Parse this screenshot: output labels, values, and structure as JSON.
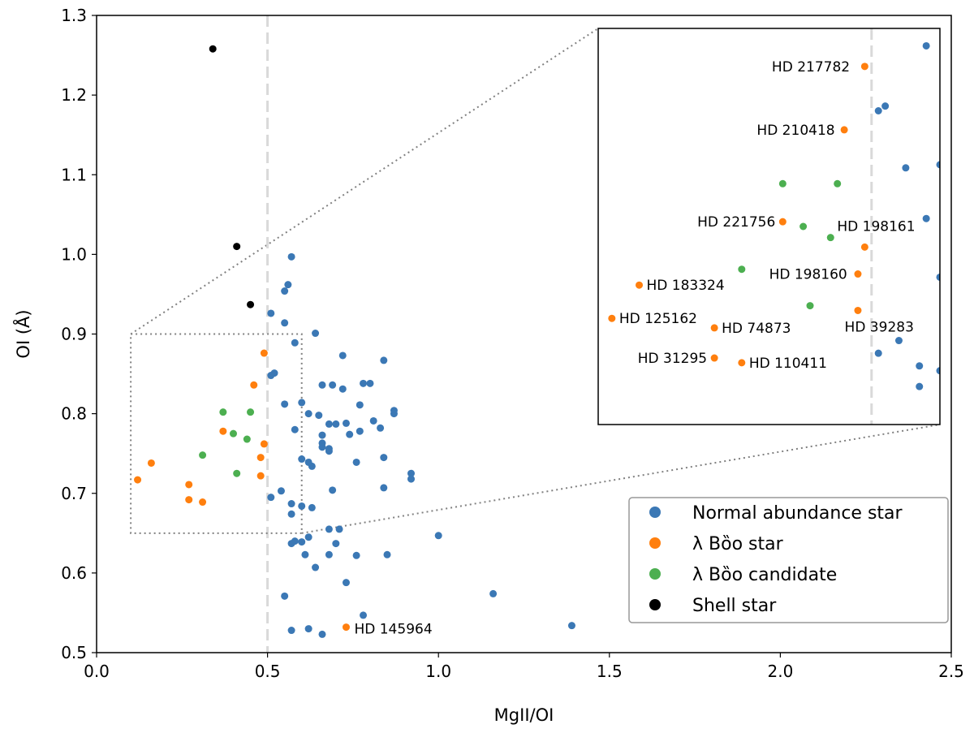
{
  "chart_data": {
    "type": "scatter",
    "title": "",
    "xlabel": "MgII/OI",
    "ylabel": "OI (Å)",
    "xlim": [
      0.0,
      2.5
    ],
    "ylim": [
      0.5,
      1.3
    ],
    "x_ticks": [
      "0.0",
      "0.5",
      "1.0",
      "1.5",
      "2.0",
      "2.5"
    ],
    "y_ticks": [
      "0.5",
      "0.6",
      "0.7",
      "0.8",
      "0.9",
      "1.0",
      "1.1",
      "1.2",
      "1.3"
    ],
    "vline_x": 0.5,
    "zoom_region": {
      "xlim": [
        0.1,
        0.6
      ],
      "ylim": [
        0.65,
        0.9
      ]
    },
    "colors": {
      "normal": "#3b78b5",
      "lamboo": "#ff7f0e",
      "candidate": "#4caf50",
      "shell": "#000000",
      "vline": "#d9d9d9",
      "dotted": "#808080"
    },
    "legend": {
      "placement": "bottom-right",
      "entries": [
        {
          "key": "normal",
          "label": "Normal abundance star"
        },
        {
          "key": "lamboo",
          "label": "λ Bȍo star"
        },
        {
          "key": "candidate",
          "label": "λ Bȍo candidate"
        },
        {
          "key": "shell",
          "label": "Shell star"
        }
      ]
    },
    "series": [
      {
        "key": "normal",
        "name": "Normal abundance star",
        "points": [
          [
            0.57,
            0.997
          ],
          [
            0.56,
            0.962
          ],
          [
            0.55,
            0.954
          ],
          [
            0.51,
            0.926
          ],
          [
            0.55,
            0.914
          ],
          [
            0.64,
            0.901
          ],
          [
            0.58,
            0.889
          ],
          [
            0.72,
            0.873
          ],
          [
            0.84,
            0.867
          ],
          [
            0.52,
            0.851
          ],
          [
            0.51,
            0.848
          ],
          [
            0.66,
            0.836
          ],
          [
            0.69,
            0.836
          ],
          [
            0.78,
            0.838
          ],
          [
            0.8,
            0.838
          ],
          [
            0.72,
            0.831
          ],
          [
            0.55,
            0.812
          ],
          [
            0.6,
            0.814
          ],
          [
            0.77,
            0.811
          ],
          [
            0.87,
            0.804
          ],
          [
            0.87,
            0.8
          ],
          [
            0.62,
            0.8
          ],
          [
            0.65,
            0.798
          ],
          [
            0.81,
            0.791
          ],
          [
            0.68,
            0.787
          ],
          [
            0.7,
            0.787
          ],
          [
            0.73,
            0.788
          ],
          [
            0.83,
            0.782
          ],
          [
            0.58,
            0.78
          ],
          [
            0.77,
            0.778
          ],
          [
            0.74,
            0.774
          ],
          [
            0.66,
            0.773
          ],
          [
            0.66,
            0.763
          ],
          [
            0.66,
            0.758
          ],
          [
            0.68,
            0.756
          ],
          [
            0.68,
            0.753
          ],
          [
            0.84,
            0.745
          ],
          [
            0.6,
            0.743
          ],
          [
            0.62,
            0.739
          ],
          [
            0.76,
            0.739
          ],
          [
            0.63,
            0.734
          ],
          [
            0.92,
            0.725
          ],
          [
            0.92,
            0.718
          ],
          [
            0.84,
            0.707
          ],
          [
            0.69,
            0.704
          ],
          [
            0.54,
            0.703
          ],
          [
            0.51,
            0.695
          ],
          [
            0.57,
            0.687
          ],
          [
            0.6,
            0.684
          ],
          [
            0.63,
            0.682
          ],
          [
            0.57,
            0.674
          ],
          [
            0.68,
            0.655
          ],
          [
            0.71,
            0.655
          ],
          [
            1.0,
            0.647
          ],
          [
            0.62,
            0.645
          ],
          [
            0.58,
            0.64
          ],
          [
            0.6,
            0.639
          ],
          [
            0.57,
            0.637
          ],
          [
            0.7,
            0.637
          ],
          [
            0.61,
            0.623
          ],
          [
            0.68,
            0.623
          ],
          [
            0.76,
            0.622
          ],
          [
            0.85,
            0.623
          ],
          [
            0.64,
            0.607
          ],
          [
            0.73,
            0.588
          ],
          [
            1.16,
            0.574
          ],
          [
            0.55,
            0.571
          ],
          [
            0.78,
            0.547
          ],
          [
            1.39,
            0.534
          ],
          [
            0.57,
            0.528
          ],
          [
            0.62,
            0.53
          ],
          [
            0.66,
            0.523
          ]
        ]
      },
      {
        "key": "lamboo",
        "name": "λ Bȍo star",
        "points": [
          [
            0.49,
            0.876
          ],
          [
            0.46,
            0.836
          ],
          [
            0.37,
            0.778
          ],
          [
            0.49,
            0.762
          ],
          [
            0.48,
            0.745
          ],
          [
            0.16,
            0.738
          ],
          [
            0.12,
            0.717
          ],
          [
            0.48,
            0.722
          ],
          [
            0.27,
            0.711
          ],
          [
            0.27,
            0.692
          ],
          [
            0.31,
            0.689
          ],
          [
            0.73,
            0.532
          ]
        ]
      },
      {
        "key": "candidate",
        "name": "λ Bȍo candidate",
        "points": [
          [
            0.37,
            0.802
          ],
          [
            0.45,
            0.802
          ],
          [
            0.4,
            0.775
          ],
          [
            0.44,
            0.768
          ],
          [
            0.31,
            0.748
          ],
          [
            0.41,
            0.725
          ]
        ]
      },
      {
        "key": "shell",
        "name": "Shell star",
        "points": [
          [
            0.34,
            1.258
          ],
          [
            0.41,
            1.01
          ],
          [
            0.45,
            0.937
          ]
        ]
      }
    ],
    "annotations": [
      {
        "label": "HD 145964",
        "x": 0.73,
        "y": 0.532,
        "panel": "main",
        "side": "right"
      },
      {
        "label": "HD 217782",
        "x": 0.479,
        "y": 0.876,
        "panel": "inset",
        "side": "left"
      },
      {
        "label": "HD 210418",
        "x": 0.457,
        "y": 0.836,
        "panel": "inset",
        "side": "left"
      },
      {
        "label": "HD 221756",
        "x": 0.37,
        "y": 0.778,
        "panel": "inset",
        "side": "left"
      },
      {
        "label": "HD 198161",
        "x": 0.49,
        "y": 0.762,
        "panel": "inset",
        "side": "right-up"
      },
      {
        "label": "HD 198160",
        "x": 0.475,
        "y": 0.745,
        "panel": "inset",
        "side": "left"
      },
      {
        "label": "HD 183324",
        "x": 0.16,
        "y": 0.738,
        "panel": "inset",
        "side": "right"
      },
      {
        "label": "HD 125162",
        "x": 0.12,
        "y": 0.717,
        "panel": "inset",
        "side": "right"
      },
      {
        "label": "HD 74873",
        "x": 0.27,
        "y": 0.711,
        "panel": "inset",
        "side": "right"
      },
      {
        "label": "HD 39283",
        "x": 0.47,
        "y": 0.722,
        "panel": "inset",
        "side": "below"
      },
      {
        "label": "HD 31295",
        "x": 0.27,
        "y": 0.692,
        "panel": "inset",
        "side": "left"
      },
      {
        "label": "HD 110411",
        "x": 0.31,
        "y": 0.689,
        "panel": "inset",
        "side": "right"
      }
    ]
  }
}
